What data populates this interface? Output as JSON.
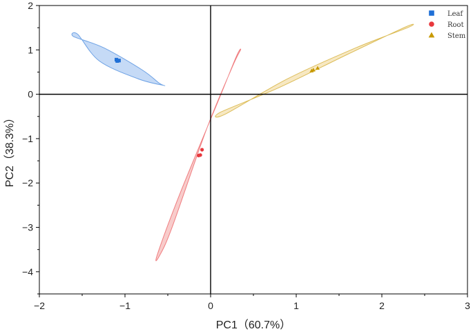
{
  "chart_data": {
    "type": "scatter",
    "xlabel": "PC1（60.7%）",
    "ylabel": "PC2（38.3%）",
    "xlim": [
      -2,
      3
    ],
    "ylim": [
      -4.5,
      2
    ],
    "xticks": [
      -2,
      -1,
      0,
      1,
      2,
      3
    ],
    "yticks": [
      -4,
      -3,
      -2,
      -1,
      0,
      1,
      2
    ],
    "reference_lines": {
      "x": 0,
      "y": 0
    },
    "legend_position": "top-right",
    "series": [
      {
        "name": "Leaf",
        "marker": "square",
        "color": "#1f6fd6",
        "fill": "#9ec2f0",
        "points": [
          [
            -1.1,
            0.78
          ],
          [
            -1.07,
            0.76
          ],
          [
            -1.09,
            0.75
          ]
        ],
        "ellipse": [
          [
            -1.55,
            1.35
          ],
          [
            -1.6,
            1.3
          ],
          [
            -1.25,
            1.05
          ],
          [
            -0.8,
            0.55
          ],
          [
            -0.6,
            0.25
          ],
          [
            -0.55,
            0.2
          ],
          [
            -0.85,
            0.35
          ],
          [
            -1.3,
            0.75
          ]
        ]
      },
      {
        "name": "Root",
        "marker": "circle",
        "color": "#e8383d",
        "fill": "#f4aaa9",
        "points": [
          [
            -0.1,
            -1.25
          ],
          [
            -0.12,
            -1.37
          ],
          [
            -0.14,
            -1.38
          ]
        ],
        "ellipse": [
          [
            0.35,
            1.0
          ],
          [
            0.25,
            0.6
          ],
          [
            -0.05,
            -0.8
          ],
          [
            -0.45,
            -3.0
          ],
          [
            -0.6,
            -3.65
          ],
          [
            -0.62,
            -3.6
          ],
          [
            -0.35,
            -2.2
          ],
          [
            0.1,
            -0.1
          ],
          [
            0.3,
            0.85
          ]
        ]
      },
      {
        "name": "Stem",
        "marker": "triangle",
        "color": "#c89a00",
        "fill": "#f1d89a",
        "points": [
          [
            1.2,
            0.55
          ],
          [
            1.25,
            0.59
          ],
          [
            1.18,
            0.53
          ]
        ],
        "ellipse": [
          [
            2.28,
            1.52
          ],
          [
            2.3,
            1.5
          ],
          [
            1.7,
            1.05
          ],
          [
            0.9,
            0.35
          ],
          [
            0.17,
            -0.45
          ],
          [
            0.12,
            -0.4
          ],
          [
            0.8,
            0.15
          ],
          [
            1.6,
            0.9
          ]
        ]
      }
    ]
  }
}
